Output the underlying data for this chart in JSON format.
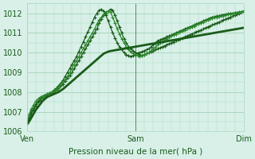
{
  "background_color": "#d8f0e8",
  "grid_color": "#aad8c0",
  "line_color_dark": "#1a5c1a",
  "line_color_mid": "#2d8a2d",
  "line_color_light": "#3aaa3a",
  "xlabel": "Pression niveau de la mer( hPa )",
  "xtick_labels": [
    "Ven",
    "Sam",
    "Dim"
  ],
  "xtick_positions": [
    0,
    48,
    96
  ],
  "ylim": [
    1006,
    1012.5
  ],
  "yticks": [
    1006,
    1007,
    1008,
    1009,
    1010,
    1011,
    1012
  ],
  "total_points": 97,
  "series1": [
    1006.4,
    1006.6,
    1006.9,
    1007.1,
    1007.3,
    1007.5,
    1007.6,
    1007.7,
    1007.8,
    1007.85,
    1007.9,
    1007.95,
    1008.0,
    1008.1,
    1008.2,
    1008.3,
    1008.4,
    1008.55,
    1008.7,
    1008.85,
    1009.0,
    1009.2,
    1009.4,
    1009.6,
    1009.8,
    1010.0,
    1010.2,
    1010.4,
    1010.6,
    1010.8,
    1011.0,
    1011.2,
    1011.5,
    1011.7,
    1011.9,
    1012.0,
    1012.1,
    1012.2,
    1012.15,
    1011.9,
    1011.6,
    1011.3,
    1011.0,
    1010.7,
    1010.5,
    1010.3,
    1010.2,
    1010.1,
    1010.0,
    1009.95,
    1009.9,
    1009.85,
    1009.9,
    1009.95,
    1010.0,
    1010.05,
    1010.1,
    1010.15,
    1010.2,
    1010.25,
    1010.3,
    1010.35,
    1010.4,
    1010.45,
    1010.5,
    1010.55,
    1010.6,
    1010.65,
    1010.7,
    1010.75,
    1010.8,
    1010.85,
    1010.9,
    1010.95,
    1011.0,
    1011.05,
    1011.1,
    1011.15,
    1011.2,
    1011.25,
    1011.3,
    1011.35,
    1011.4,
    1011.45,
    1011.5,
    1011.55,
    1011.6,
    1011.65,
    1011.7,
    1011.75,
    1011.8,
    1011.85,
    1011.9,
    1011.95,
    1012.0,
    1012.05,
    1012.1
  ],
  "series2": [
    1006.4,
    1006.7,
    1007.05,
    1007.2,
    1007.4,
    1007.55,
    1007.7,
    1007.8,
    1007.85,
    1007.9,
    1007.95,
    1008.0,
    1008.1,
    1008.2,
    1008.3,
    1008.45,
    1008.6,
    1008.8,
    1009.0,
    1009.2,
    1009.4,
    1009.6,
    1009.8,
    1010.05,
    1010.3,
    1010.55,
    1010.8,
    1011.05,
    1011.3,
    1011.55,
    1011.8,
    1012.0,
    1012.15,
    1012.2,
    1012.1,
    1011.9,
    1011.6,
    1011.3,
    1011.0,
    1010.75,
    1010.5,
    1010.3,
    1010.15,
    1010.0,
    1009.9,
    1009.85,
    1009.8,
    1009.85,
    1009.9,
    1009.95,
    1010.0,
    1010.05,
    1010.1,
    1010.15,
    1010.2,
    1010.3,
    1010.4,
    1010.5,
    1010.6,
    1010.65,
    1010.7,
    1010.75,
    1010.8,
    1010.85,
    1010.9,
    1010.95,
    1011.0,
    1011.05,
    1011.1,
    1011.15,
    1011.2,
    1011.25,
    1011.3,
    1011.35,
    1011.4,
    1011.45,
    1011.5,
    1011.55,
    1011.6,
    1011.65,
    1011.7,
    1011.75,
    1011.8,
    1011.82,
    1011.85,
    1011.87,
    1011.9,
    1011.92,
    1011.95,
    1011.97,
    1011.99,
    1012.0,
    1012.02,
    1012.04,
    1012.06,
    1012.08,
    1012.1
  ],
  "series3": [
    1006.4,
    1006.85,
    1007.15,
    1007.35,
    1007.55,
    1007.65,
    1007.75,
    1007.8,
    1007.85,
    1007.9,
    1007.95,
    1008.0,
    1008.05,
    1008.15,
    1008.25,
    1008.35,
    1008.5,
    1008.65,
    1008.8,
    1009.0,
    1009.2,
    1009.4,
    1009.6,
    1009.8,
    1010.0,
    1010.2,
    1010.4,
    1010.6,
    1010.8,
    1011.0,
    1011.2,
    1011.45,
    1011.65,
    1011.8,
    1011.95,
    1012.05,
    1012.1,
    1012.05,
    1011.8,
    1011.5,
    1011.2,
    1010.95,
    1010.7,
    1010.5,
    1010.3,
    1010.15,
    1010.05,
    1009.95,
    1009.9,
    1009.85,
    1009.82,
    1009.85,
    1009.9,
    1009.95,
    1010.0,
    1010.1,
    1010.2,
    1010.3,
    1010.4,
    1010.48,
    1010.55,
    1010.62,
    1010.7,
    1010.77,
    1010.84,
    1010.9,
    1010.95,
    1011.0,
    1011.05,
    1011.1,
    1011.15,
    1011.2,
    1011.25,
    1011.3,
    1011.35,
    1011.4,
    1011.45,
    1011.5,
    1011.55,
    1011.6,
    1011.65,
    1011.7,
    1011.75,
    1011.78,
    1011.8,
    1011.82,
    1011.85,
    1011.87,
    1011.9,
    1011.93,
    1011.95,
    1011.98,
    1012.0,
    1012.02,
    1012.04,
    1012.06,
    1012.1
  ],
  "series4": [
    1006.4,
    1006.5,
    1006.7,
    1006.9,
    1007.1,
    1007.25,
    1007.4,
    1007.55,
    1007.65,
    1007.75,
    1007.8,
    1007.85,
    1007.9,
    1007.95,
    1008.0,
    1008.08,
    1008.15,
    1008.25,
    1008.35,
    1008.45,
    1008.55,
    1008.65,
    1008.75,
    1008.85,
    1008.95,
    1009.05,
    1009.15,
    1009.25,
    1009.35,
    1009.45,
    1009.55,
    1009.65,
    1009.75,
    1009.85,
    1009.95,
    1010.0,
    1010.05,
    1010.08,
    1010.1,
    1010.12,
    1010.14,
    1010.16,
    1010.18,
    1010.2,
    1010.22,
    1010.24,
    1010.26,
    1010.28,
    1010.3,
    1010.32,
    1010.34,
    1010.36,
    1010.38,
    1010.4,
    1010.42,
    1010.44,
    1010.46,
    1010.48,
    1010.5,
    1010.52,
    1010.54,
    1010.56,
    1010.58,
    1010.6,
    1010.62,
    1010.64,
    1010.66,
    1010.68,
    1010.7,
    1010.72,
    1010.74,
    1010.76,
    1010.78,
    1010.8,
    1010.82,
    1010.84,
    1010.86,
    1010.88,
    1010.9,
    1010.92,
    1010.94,
    1010.96,
    1010.98,
    1011.0,
    1011.02,
    1011.04,
    1011.06,
    1011.08,
    1011.1,
    1011.12,
    1011.14,
    1011.16,
    1011.18,
    1011.2,
    1011.22,
    1011.24,
    1011.26
  ]
}
